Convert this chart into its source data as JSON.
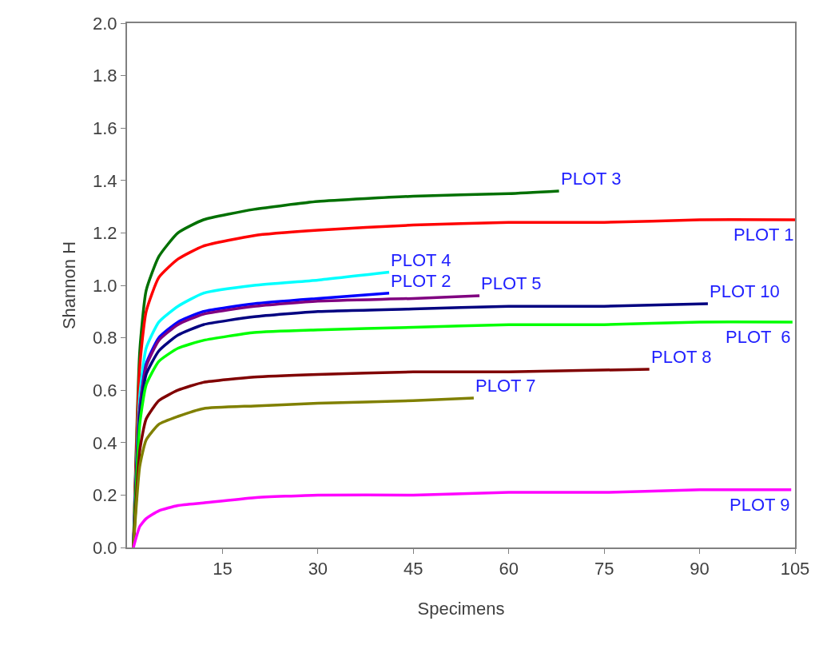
{
  "chart_data": {
    "type": "line",
    "xlabel": "Specimens",
    "ylabel": "Shannon H",
    "xlim": [
      0,
      105
    ],
    "xticks": [
      15,
      30,
      45,
      60,
      75,
      90,
      105
    ],
    "ylim": [
      0,
      2
    ],
    "yticks": [
      {
        "value": 0,
        "label": "0.0"
      },
      {
        "value": 0.2,
        "label": "0.2"
      },
      {
        "value": 0.4,
        "label": "0.4"
      },
      {
        "value": 0.6,
        "label": "0.6"
      },
      {
        "value": 0.8,
        "label": "0.8"
      },
      {
        "value": 1.0,
        "label": "1.0"
      },
      {
        "value": 1.2,
        "label": "1.2"
      },
      {
        "value": 1.4,
        "label": "1.4"
      },
      {
        "value": 1.6,
        "label": "1.6"
      },
      {
        "value": 1.8,
        "label": "1.8"
      },
      {
        "value": 2.0,
        "label": "2.0"
      }
    ],
    "legend": false,
    "marker": "none",
    "line_style": "solid",
    "series": [
      {
        "name": "PLOT 3",
        "color": "#007000",
        "x": [
          1,
          2,
          3,
          5,
          8,
          12,
          20,
          30,
          45,
          60,
          67.9
        ],
        "values": [
          0,
          0.75,
          0.98,
          1.11,
          1.2,
          1.25,
          1.29,
          1.32,
          1.34,
          1.35,
          1.36
        ]
      },
      {
        "name": "PLOT 1",
        "color": "#ff0000",
        "x": [
          1,
          2,
          3,
          5,
          8,
          12,
          20,
          30,
          45,
          60,
          75,
          90,
          105
        ],
        "values": [
          0,
          0.69,
          0.9,
          1.03,
          1.1,
          1.15,
          1.19,
          1.21,
          1.23,
          1.24,
          1.24,
          1.25,
          1.25
        ]
      },
      {
        "name": "PLOT 4",
        "color": "#00ffff",
        "x": [
          1,
          2,
          3,
          5,
          8,
          12,
          20,
          30,
          41.2
        ],
        "values": [
          0,
          0.58,
          0.76,
          0.86,
          0.92,
          0.97,
          1.0,
          1.02,
          1.05
        ]
      },
      {
        "name": "PLOT 2",
        "color": "#0000ff",
        "x": [
          1,
          2,
          3,
          5,
          8,
          12,
          20,
          30,
          41.2
        ],
        "values": [
          0,
          0.53,
          0.7,
          0.8,
          0.86,
          0.9,
          0.93,
          0.95,
          0.97
        ]
      },
      {
        "name": "PLOT 5",
        "color": "#800080",
        "x": [
          1,
          2,
          3,
          5,
          8,
          12,
          20,
          30,
          45,
          55.4
        ],
        "values": [
          0,
          0.53,
          0.69,
          0.79,
          0.85,
          0.89,
          0.92,
          0.94,
          0.95,
          0.96
        ]
      },
      {
        "name": "PLOT 10",
        "color": "#000080",
        "x": [
          1,
          2,
          3,
          5,
          8,
          12,
          20,
          30,
          45,
          60,
          75,
          91.3
        ],
        "values": [
          0,
          0.5,
          0.66,
          0.75,
          0.81,
          0.85,
          0.88,
          0.9,
          0.91,
          0.92,
          0.92,
          0.93
        ]
      },
      {
        "name": "PLOT  6",
        "color": "#00ff00",
        "x": [
          1,
          2,
          3,
          5,
          8,
          12,
          20,
          30,
          45,
          60,
          75,
          90,
          104.6
        ],
        "values": [
          0,
          0.47,
          0.62,
          0.71,
          0.76,
          0.79,
          0.82,
          0.83,
          0.84,
          0.85,
          0.85,
          0.86,
          0.86
        ]
      },
      {
        "name": "PLOT 8",
        "color": "#800000",
        "x": [
          1,
          2,
          3,
          5,
          8,
          12,
          20,
          30,
          45,
          60,
          82.1
        ],
        "values": [
          0,
          0.37,
          0.49,
          0.56,
          0.6,
          0.63,
          0.65,
          0.66,
          0.67,
          0.67,
          0.68
        ]
      },
      {
        "name": "PLOT 7",
        "color": "#808000",
        "x": [
          1,
          2,
          3,
          5,
          8,
          12,
          20,
          30,
          45,
          54.5
        ],
        "values": [
          0,
          0.31,
          0.41,
          0.47,
          0.5,
          0.53,
          0.54,
          0.55,
          0.56,
          0.57
        ]
      },
      {
        "name": "PLOT 9",
        "color": "#ff00ff",
        "x": [
          1,
          2,
          3,
          5,
          8,
          12,
          20,
          30,
          45,
          60,
          75,
          90,
          104.4
        ],
        "values": [
          0,
          0.08,
          0.11,
          0.14,
          0.16,
          0.17,
          0.19,
          0.2,
          0.2,
          0.21,
          0.21,
          0.22,
          0.22
        ]
      }
    ]
  }
}
